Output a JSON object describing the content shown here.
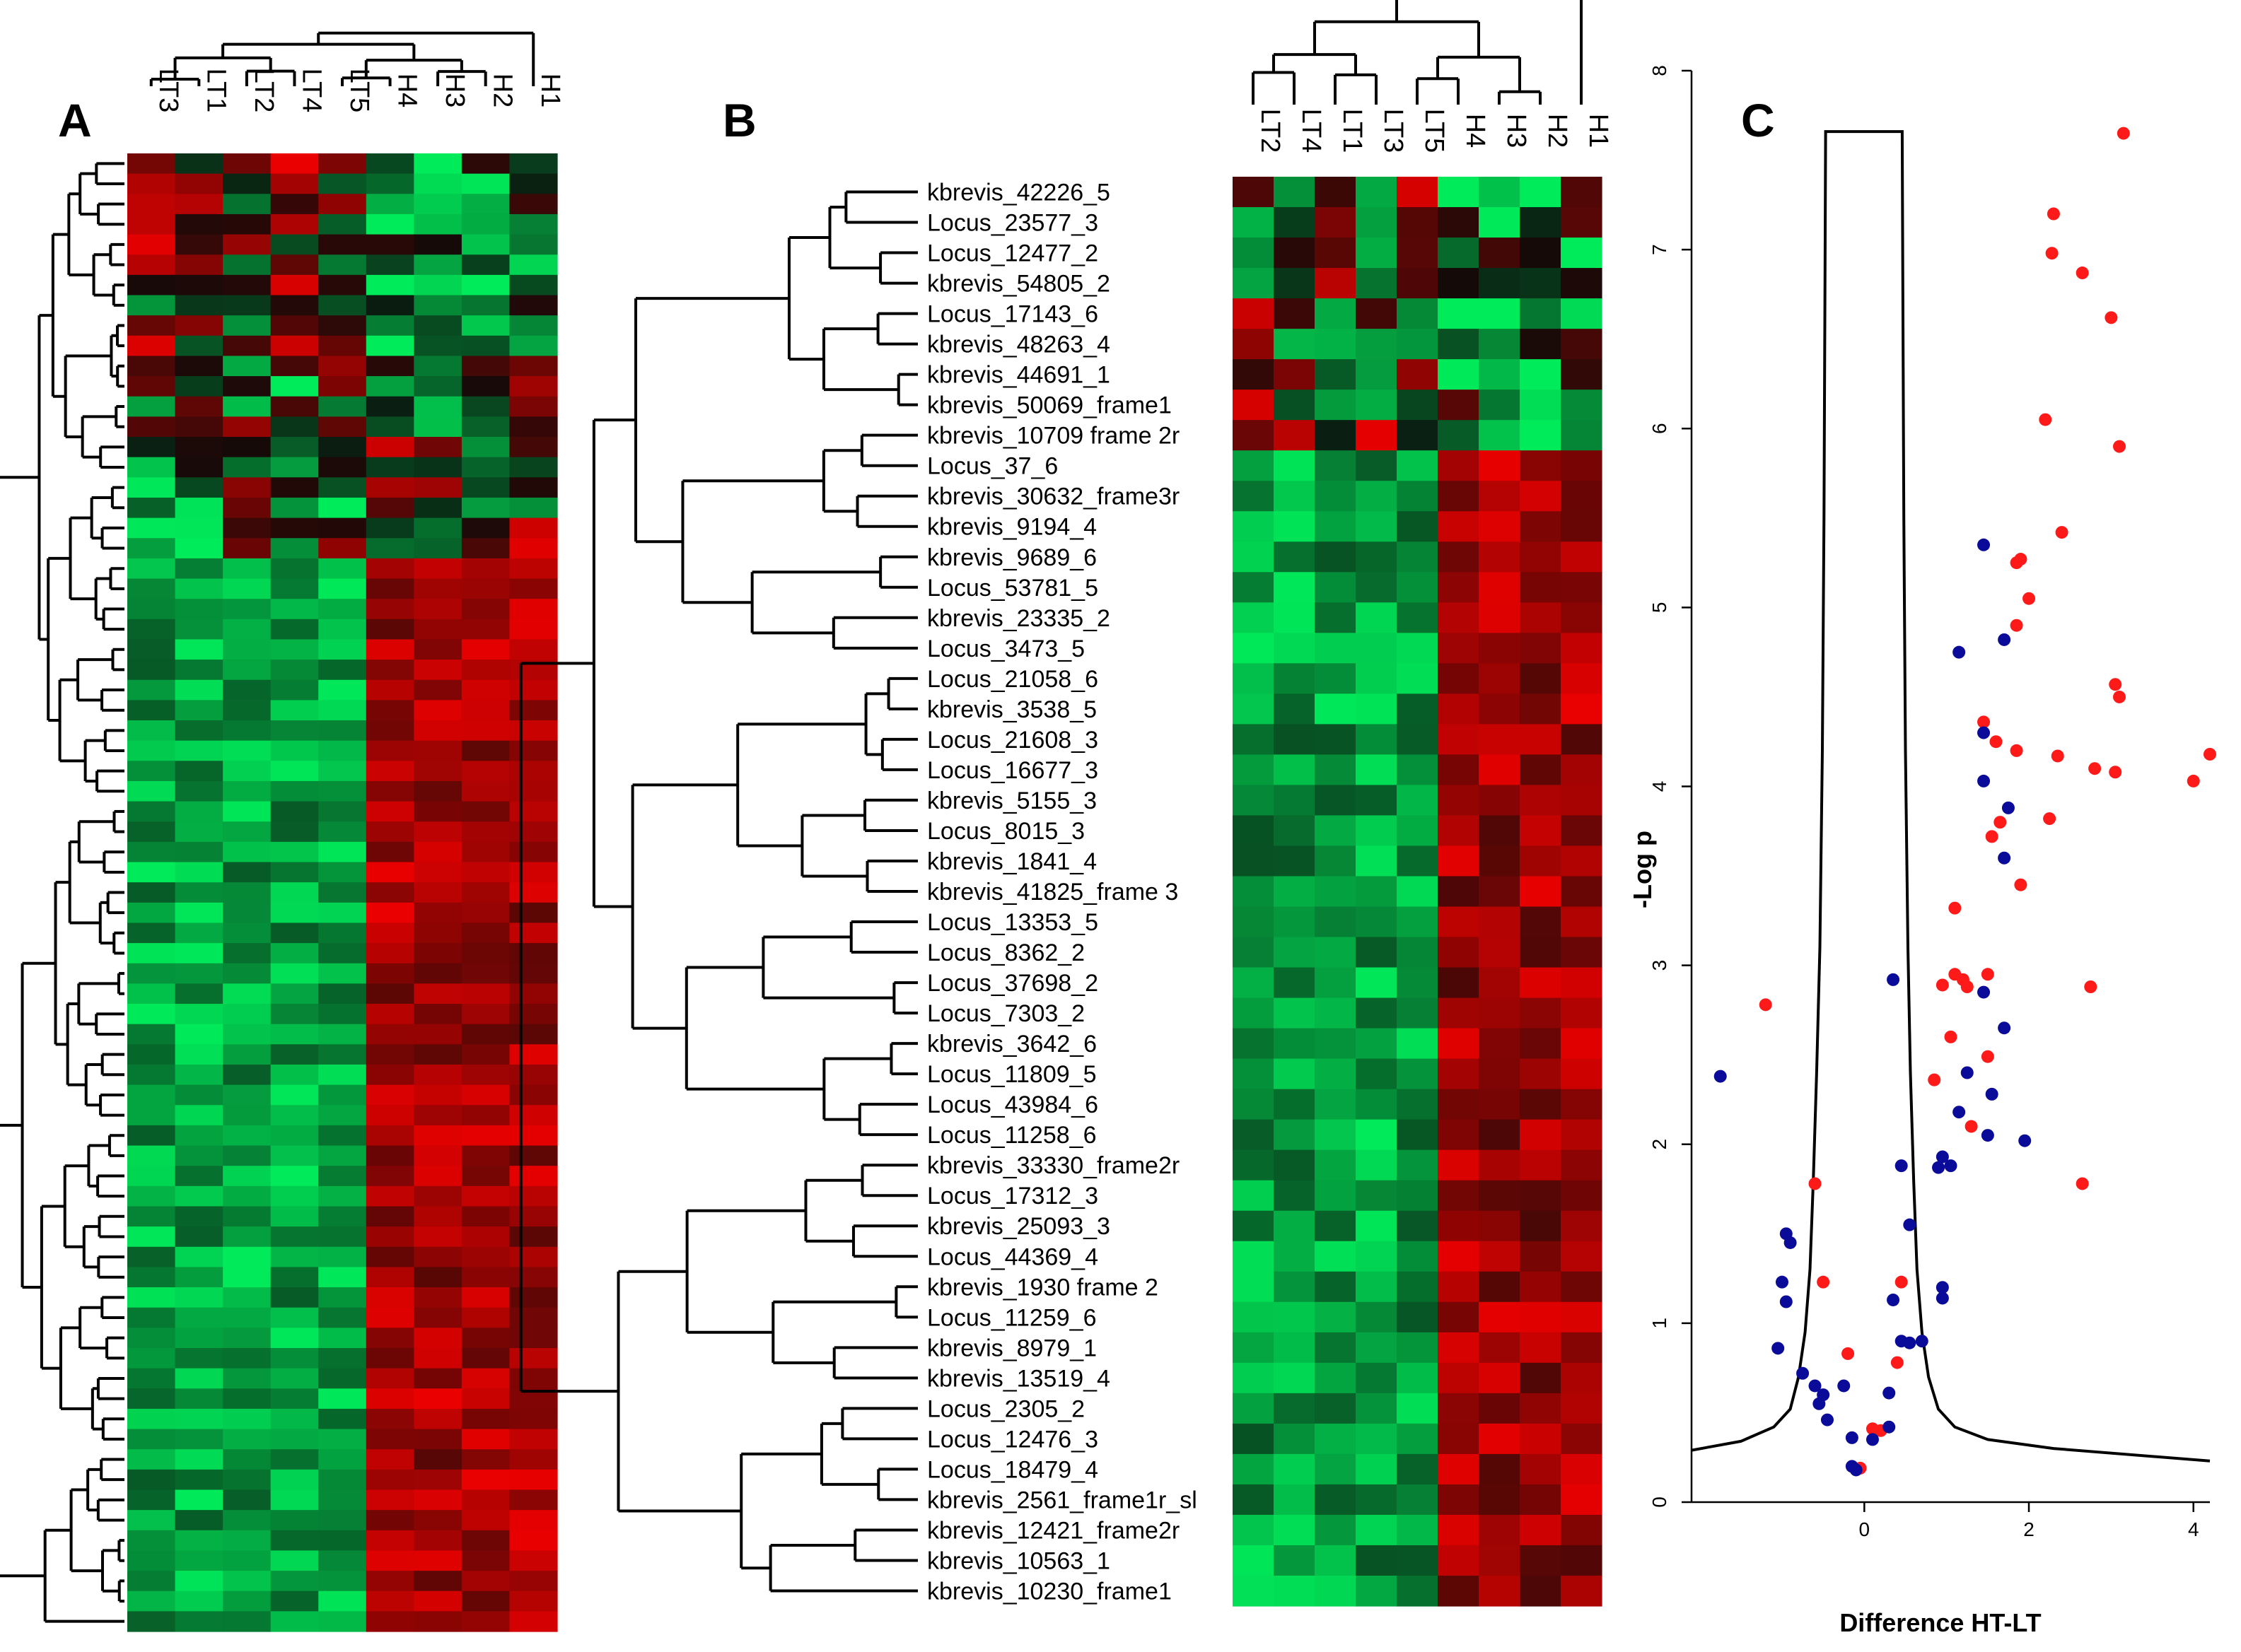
{
  "colors": {
    "heat_red": "#cc0000",
    "heat_green": "#00e050",
    "heat_black": "#000000",
    "dot_red": "#ff1a1a",
    "dot_blue": "#0b0b9a"
  },
  "panel_a": {
    "letter": "A",
    "columns": [
      "LT3",
      "LT1",
      "LT2",
      "LT4",
      "LT5",
      "H4",
      "H3",
      "H2",
      "H1"
    ],
    "row_count": 73
  },
  "panel_b": {
    "letter": "B",
    "columns": [
      "LT2",
      "LT4",
      "LT1",
      "LT3",
      "LT5",
      "H4",
      "H3",
      "H2",
      "H1"
    ],
    "rows": [
      "kbrevis_42226_5",
      "Locus_23577_3",
      "Locus_12477_2",
      "kbrevis_54805_2",
      "Locus_17143_6",
      "kbrevis_48263_4",
      "kbrevis_44691_1",
      "kbrevis_50069_frame1",
      "kbrevis_10709 frame 2r",
      "Locus_37_6",
      "kbrevis_30632_frame3r",
      "kbrevis_9194_4",
      "kbrevis_9689_6",
      "Locus_53781_5",
      "kbrevis_23335_2",
      "Locus_3473_5",
      "Locus_21058_6",
      "kbrevis_3538_5",
      "Locus_21608_3",
      "Locus_16677_3",
      "kbrevis_5155_3",
      "Locus_8015_3",
      "kbrevis_1841_4",
      "kbrevis_41825_frame 3",
      "Locus_13353_5",
      "Locus_8362_2",
      "Locus_37698_2",
      "Locus_7303_2",
      "kbrevis_3642_6",
      "Locus_11809_5",
      "Locus_43984_6",
      "Locus_11258_6",
      "kbrevis_33330_frame2r",
      "Locus_17312_3",
      "kbrevis_25093_3",
      "Locus_44369_4",
      "kbrevis_1930 frame 2",
      "Locus_11259_6",
      "kbrevis_8979_1",
      "kbrevis_13519_4",
      "Locus_2305_2",
      "Locus_12476_3",
      "Locus_18479_4",
      "kbrevis_2561_frame1r_sl",
      "kbrevis_12421_frame2r",
      "kbrevis_10563_1",
      "kbrevis_10230_frame1"
    ]
  },
  "chart_data": {
    "type": "scatter",
    "letter": "C",
    "title": "",
    "xlabel": "Difference HT-LT",
    "ylabel": "-Log p",
    "xlim": [
      -2.1,
      4.2
    ],
    "ylim": [
      0,
      8
    ],
    "xticks": [
      0,
      2,
      4
    ],
    "yticks": [
      0,
      1,
      2,
      3,
      4,
      5,
      6,
      7,
      8
    ],
    "curve_name": "volcano threshold curve",
    "curve": [
      [
        -2.1,
        0.29
      ],
      [
        -1.5,
        0.34
      ],
      [
        -1.1,
        0.42
      ],
      [
        -0.9,
        0.52
      ],
      [
        -0.8,
        0.7
      ],
      [
        -0.72,
        0.95
      ],
      [
        -0.66,
        1.3
      ],
      [
        -0.62,
        1.8
      ],
      [
        -0.58,
        2.4
      ],
      [
        -0.54,
        3.1
      ],
      [
        -0.51,
        4.2
      ],
      [
        -0.49,
        5.5
      ],
      [
        -0.48,
        6.6
      ],
      [
        -0.47,
        7.66
      ],
      [
        0.46,
        7.66
      ],
      [
        0.47,
        6.6
      ],
      [
        0.48,
        5.5
      ],
      [
        0.5,
        4.2
      ],
      [
        0.53,
        3.1
      ],
      [
        0.56,
        2.4
      ],
      [
        0.6,
        1.8
      ],
      [
        0.64,
        1.3
      ],
      [
        0.7,
        0.95
      ],
      [
        0.78,
        0.7
      ],
      [
        0.9,
        0.52
      ],
      [
        1.1,
        0.42
      ],
      [
        1.5,
        0.35
      ],
      [
        2.3,
        0.3
      ],
      [
        4.2,
        0.23
      ]
    ],
    "series": [
      {
        "name": "red points",
        "color": "#ff1a1a",
        "points": [
          [
            3.15,
            7.65
          ],
          [
            2.3,
            7.2
          ],
          [
            2.28,
            6.98
          ],
          [
            2.65,
            6.87
          ],
          [
            3.0,
            6.62
          ],
          [
            2.2,
            6.05
          ],
          [
            3.1,
            5.9
          ],
          [
            2.4,
            5.42
          ],
          [
            1.9,
            5.27
          ],
          [
            1.85,
            5.25
          ],
          [
            2.0,
            5.05
          ],
          [
            3.05,
            4.57
          ],
          [
            1.85,
            4.9
          ],
          [
            3.1,
            4.5
          ],
          [
            1.45,
            4.36
          ],
          [
            1.6,
            4.25
          ],
          [
            1.85,
            4.2
          ],
          [
            2.35,
            4.17
          ],
          [
            2.8,
            4.1
          ],
          [
            3.05,
            4.08
          ],
          [
            4.2,
            4.18
          ],
          [
            4.0,
            4.03
          ],
          [
            2.25,
            3.82
          ],
          [
            1.65,
            3.8
          ],
          [
            1.55,
            3.72
          ],
          [
            1.9,
            3.45
          ],
          [
            1.1,
            3.32
          ],
          [
            1.1,
            2.95
          ],
          [
            0.95,
            2.89
          ],
          [
            1.2,
            2.92
          ],
          [
            1.25,
            2.88
          ],
          [
            1.5,
            2.95
          ],
          [
            2.75,
            2.88
          ],
          [
            1.05,
            2.6
          ],
          [
            1.5,
            2.49
          ],
          [
            0.85,
            2.36
          ],
          [
            1.3,
            2.1
          ],
          [
            2.65,
            1.78
          ],
          [
            -1.2,
            2.78
          ],
          [
            -0.6,
            1.78
          ],
          [
            -0.5,
            1.23
          ],
          [
            -0.2,
            0.83
          ],
          [
            0.4,
            0.78
          ],
          [
            0.45,
            1.23
          ],
          [
            0.1,
            0.41
          ],
          [
            0.2,
            0.4
          ],
          [
            -0.05,
            0.19
          ]
        ]
      },
      {
        "name": "blue points",
        "color": "#0b0b9a",
        "points": [
          [
            1.45,
            5.35
          ],
          [
            1.7,
            4.82
          ],
          [
            1.15,
            4.75
          ],
          [
            1.45,
            4.3
          ],
          [
            1.45,
            4.03
          ],
          [
            1.75,
            3.88
          ],
          [
            1.7,
            3.6
          ],
          [
            0.35,
            2.92
          ],
          [
            1.45,
            2.85
          ],
          [
            1.7,
            2.65
          ],
          [
            1.25,
            2.4
          ],
          [
            1.55,
            2.28
          ],
          [
            1.15,
            2.18
          ],
          [
            1.5,
            2.05
          ],
          [
            1.95,
            2.02
          ],
          [
            0.95,
            1.93
          ],
          [
            1.05,
            1.88
          ],
          [
            0.9,
            1.87
          ],
          [
            0.45,
            1.88
          ],
          [
            0.55,
            1.55
          ],
          [
            0.95,
            1.2
          ],
          [
            0.95,
            1.14
          ],
          [
            0.35,
            1.13
          ],
          [
            0.45,
            0.9
          ],
          [
            0.55,
            0.89
          ],
          [
            0.7,
            0.9
          ],
          [
            -0.95,
            1.5
          ],
          [
            -0.9,
            1.45
          ],
          [
            -1.0,
            1.23
          ],
          [
            -0.95,
            1.12
          ],
          [
            -1.05,
            0.86
          ],
          [
            -0.75,
            0.72
          ],
          [
            -0.6,
            0.65
          ],
          [
            -0.5,
            0.6
          ],
          [
            -0.25,
            0.65
          ],
          [
            -0.55,
            0.55
          ],
          [
            -0.45,
            0.46
          ],
          [
            -0.15,
            0.36
          ],
          [
            0.1,
            0.35
          ],
          [
            0.3,
            0.42
          ],
          [
            0.3,
            0.61
          ],
          [
            -0.15,
            0.2
          ],
          [
            -0.1,
            0.18
          ],
          [
            -1.75,
            2.38
          ]
        ]
      }
    ]
  }
}
